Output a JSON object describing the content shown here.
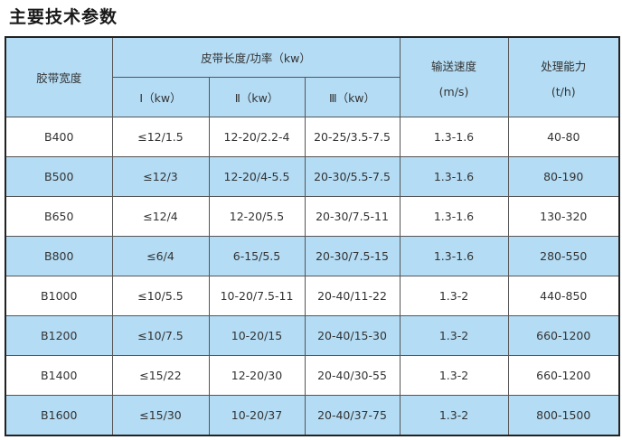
{
  "title": "主要技术参数",
  "header": {
    "width": "胶带宽度",
    "length_power": "皮带长度/功率（kw）",
    "speed": "输送速度",
    "speed_unit": "(m/s)",
    "capacity": "处理能力",
    "capacity_unit": "(t/h)",
    "sub": [
      "Ⅰ（kw）",
      "Ⅱ（kw）",
      "Ⅲ（kw）"
    ]
  },
  "colors": {
    "header_bg": "#b4dcf4",
    "alt_row_bg": "#b4dcf4"
  },
  "rows": [
    [
      "B400",
      "≤12/1.5",
      "12-20/2.2-4",
      "20-25/3.5-7.5",
      "1.3-1.6",
      "40-80"
    ],
    [
      "B500",
      "≤12/3",
      "12-20/4-5.5",
      "20-30/5.5-7.5",
      "1.3-1.6",
      "80-190"
    ],
    [
      "B650",
      "≤12/4",
      "12-20/5.5",
      "20-30/7.5-11",
      "1.3-1.6",
      "130-320"
    ],
    [
      "B800",
      "≤6/4",
      "6-15/5.5",
      "20-30/7.5-15",
      "1.3-1.6",
      "280-550"
    ],
    [
      "B1000",
      "≤10/5.5",
      "10-20/7.5-11",
      "20-40/11-22",
      "1.3-2",
      "440-850"
    ],
    [
      "B1200",
      "≤10/7.5",
      "10-20/15",
      "20-40/15-30",
      "1.3-2",
      "660-1200"
    ],
    [
      "B1400",
      "≤15/22",
      "12-20/30",
      "20-40/30-55",
      "1.3-2",
      "660-1200"
    ],
    [
      "B1600",
      "≤15/30",
      "10-20/37",
      "20-40/37-75",
      "1.3-2",
      "800-1500"
    ]
  ]
}
